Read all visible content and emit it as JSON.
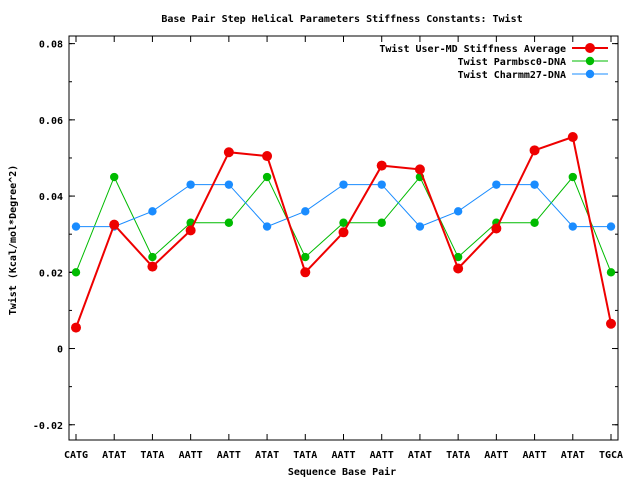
{
  "chart_data": {
    "type": "line",
    "title": "Base Pair Step Helical Parameters Stiffness Constants: Twist",
    "xlabel": "Sequence Base Pair",
    "ylabel": "Twist (Kcal/mol*Degree^2)",
    "categories": [
      "CATG",
      "ATAT",
      "TATA",
      "AATT",
      "AATT",
      "ATAT",
      "TATA",
      "AATT",
      "AATT",
      "ATAT",
      "TATA",
      "AATT",
      "AATT",
      "ATAT",
      "TGCA"
    ],
    "ylim": [
      -0.024,
      0.082
    ],
    "yticks": [
      -0.02,
      0,
      0.02,
      0.04,
      0.06,
      0.08
    ],
    "ytick_labels": [
      "-0.02",
      "0",
      "0.02",
      "0.04",
      "0.06",
      "0.08"
    ],
    "grid": false,
    "legend_position": "top-right",
    "series": [
      {
        "name": "Twist User-MD Stiffness Average",
        "color": "#ee0000",
        "values": [
          0.0055,
          0.0325,
          0.0215,
          0.031,
          0.0515,
          0.0505,
          0.02,
          0.0305,
          0.048,
          0.047,
          0.021,
          0.0315,
          0.052,
          0.0555,
          0.0065
        ]
      },
      {
        "name": "Twist Parmbsc0-DNA",
        "color": "#00bb00",
        "values": [
          0.02,
          0.045,
          0.024,
          0.033,
          0.033,
          0.045,
          0.024,
          0.033,
          0.033,
          0.045,
          0.024,
          0.033,
          0.033,
          0.045,
          0.02
        ]
      },
      {
        "name": "Twist Charmm27-DNA",
        "color": "#1a8cff",
        "values": [
          0.032,
          0.032,
          0.036,
          0.043,
          0.043,
          0.032,
          0.036,
          0.043,
          0.043,
          0.032,
          0.036,
          0.043,
          0.043,
          0.032,
          0.032
        ]
      }
    ]
  }
}
